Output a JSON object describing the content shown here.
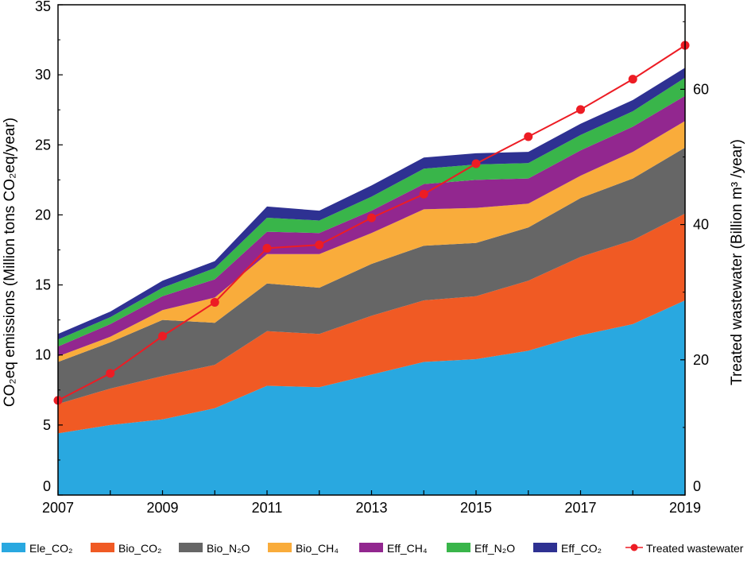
{
  "chart_data": {
    "type": "area",
    "x": [
      2007,
      2008,
      2009,
      2010,
      2011,
      2012,
      2013,
      2014,
      2015,
      2016,
      2017,
      2018,
      2019
    ],
    "x_ticks": [
      "2007",
      "2009",
      "2011",
      "2013",
      "2015",
      "2017",
      "2019"
    ],
    "xlim": [
      2007,
      2019
    ],
    "ylabel": "CO₂eq emissions (Million tons CO₂eq/year)",
    "ylim": [
      0,
      35
    ],
    "y_ticks": [
      "0",
      "5",
      "10",
      "15",
      "20",
      "25",
      "30",
      "35"
    ],
    "y2label": "Treated wastewater (Billion m³ /year)",
    "y2lim": [
      0,
      72.5
    ],
    "y2_ticks": [
      "0",
      "20",
      "40",
      "60"
    ],
    "stacked": true,
    "series": [
      {
        "name": "Ele_CO₂",
        "color": "#29a8e0",
        "values": [
          4.4,
          5.0,
          5.4,
          6.2,
          7.8,
          7.7,
          8.6,
          9.5,
          9.7,
          10.3,
          11.4,
          12.2,
          13.9
        ]
      },
      {
        "name": "Bio_CO₂",
        "color": "#f05a24",
        "values": [
          2.1,
          2.6,
          3.1,
          3.1,
          3.9,
          3.8,
          4.2,
          4.4,
          4.5,
          5.0,
          5.6,
          6.0,
          6.2
        ]
      },
      {
        "name": "Bio_N₂O",
        "color": "#666666",
        "values": [
          3.0,
          3.3,
          4.0,
          3.0,
          3.4,
          3.3,
          3.7,
          3.9,
          3.8,
          3.8,
          4.2,
          4.4,
          4.7
        ]
      },
      {
        "name": "Bio_CH₄",
        "color": "#f9ac3b",
        "values": [
          0.4,
          0.4,
          0.7,
          1.8,
          2.1,
          2.4,
          2.2,
          2.6,
          2.5,
          1.7,
          1.6,
          1.9,
          1.9
        ]
      },
      {
        "name": "Eff_CH₄",
        "color": "#92278f",
        "values": [
          0.7,
          0.9,
          1.0,
          1.3,
          1.6,
          1.5,
          1.6,
          1.8,
          2.0,
          1.8,
          1.8,
          1.8,
          1.8
        ]
      },
      {
        "name": "Eff_N₂O",
        "color": "#39b54a",
        "values": [
          0.5,
          0.5,
          0.6,
          0.8,
          1.0,
          0.9,
          1.0,
          1.1,
          1.1,
          1.1,
          1.1,
          1.1,
          1.3
        ]
      },
      {
        "name": "Eff_CO₂",
        "color": "#2e3192",
        "values": [
          0.4,
          0.4,
          0.5,
          0.5,
          0.8,
          0.7,
          0.8,
          0.8,
          0.8,
          0.8,
          0.8,
          0.8,
          0.7
        ]
      }
    ],
    "line_series": {
      "name": "Treated wastewater",
      "color": "#ed1c24",
      "axis": "right",
      "values": [
        14.0,
        18.0,
        23.5,
        28.5,
        36.5,
        37.0,
        41.0,
        44.5,
        49.0,
        53.0,
        57.0,
        61.5,
        66.5
      ]
    },
    "legend_position": "bottom",
    "grid": false
  }
}
